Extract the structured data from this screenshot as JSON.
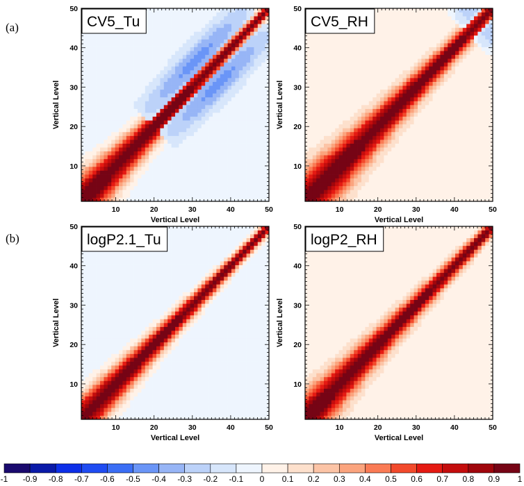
{
  "figure": {
    "row_tags": [
      "(a)",
      "(b)"
    ]
  },
  "chart_data": [
    {
      "type": "heatmap",
      "title": "CV5_Tu",
      "xlabel": "Vertical Level",
      "ylabel": "Vertical Level",
      "xlim": [
        1,
        50
      ],
      "ylim": [
        1,
        50
      ],
      "xticks": [
        10,
        20,
        30,
        40,
        50
      ],
      "yticks": [
        10,
        20,
        30,
        40,
        50
      ],
      "description_values": {
        "diagonal": 1.0,
        "decay_width_low_levels": 5.5,
        "decay_width_high_levels": 1.2,
        "background": -0.05,
        "negative_lobe_min": -0.35,
        "negative_lobe_levels": [
          20,
          48
        ]
      }
    },
    {
      "type": "heatmap",
      "title": "CV5_RH",
      "xlabel": "Vertical Level",
      "ylabel": "Vertical Level",
      "xlim": [
        1,
        50
      ],
      "ylim": [
        1,
        50
      ],
      "xticks": [
        10,
        20,
        30,
        40,
        50
      ],
      "yticks": [
        10,
        20,
        30,
        40,
        50
      ],
      "description_values": {
        "diagonal": 1.0,
        "decay_width_low_levels": 6.0,
        "decay_width_high_levels": 1.8,
        "background": 0.05,
        "negative_lobe_min": -0.3,
        "negative_lobe_levels": [
          44,
          50
        ]
      }
    },
    {
      "type": "heatmap",
      "title": "logP2.1_Tu",
      "xlabel": "Vertical Level",
      "ylabel": "Vertical Level",
      "xlim": [
        1,
        50
      ],
      "ylim": [
        1,
        50
      ],
      "xticks": [
        10,
        20,
        30,
        40,
        50
      ],
      "yticks": [
        10,
        20,
        30,
        40,
        50
      ],
      "description_values": {
        "diagonal": 1.0,
        "decay_width_low_levels": 4.5,
        "decay_width_high_levels": 1.2,
        "background": -0.05,
        "negative_lobe_min": 0,
        "negative_lobe_levels": []
      }
    },
    {
      "type": "heatmap",
      "title": "logP2_RH",
      "xlabel": "Vertical Level",
      "ylabel": "Vertical Level",
      "xlim": [
        1,
        50
      ],
      "ylim": [
        1,
        50
      ],
      "xticks": [
        10,
        20,
        30,
        40,
        50
      ],
      "yticks": [
        10,
        20,
        30,
        40,
        50
      ],
      "description_values": {
        "diagonal": 1.0,
        "decay_width_low_levels": 5.0,
        "decay_width_high_levels": 1.4,
        "background": 0.05,
        "negative_lobe_min": 0,
        "negative_lobe_levels": []
      }
    }
  ],
  "colorbar": {
    "labels": [
      "-1",
      "-0.9",
      "-0.8",
      "-0.7",
      "-0.6",
      "-0.5",
      "-0.4",
      "-0.3",
      "-0.2",
      "-0.1",
      "0",
      "0.1",
      "0.2",
      "0.3",
      "0.4",
      "0.5",
      "0.6",
      "0.7",
      "0.8",
      "0.9",
      "1"
    ],
    "colors": [
      "#1a0a6e",
      "#0a1aa8",
      "#0d2fe8",
      "#1f4cf2",
      "#3b6ef5",
      "#6a95f7",
      "#97b5f6",
      "#bcd2f9",
      "#d7e6fb",
      "#eef5fe",
      "#fff2e8",
      "#fde0cc",
      "#fcc4a6",
      "#fba47e",
      "#fa7b55",
      "#f24a2c",
      "#e51a12",
      "#c40d0d",
      "#a0060c",
      "#760415"
    ]
  }
}
